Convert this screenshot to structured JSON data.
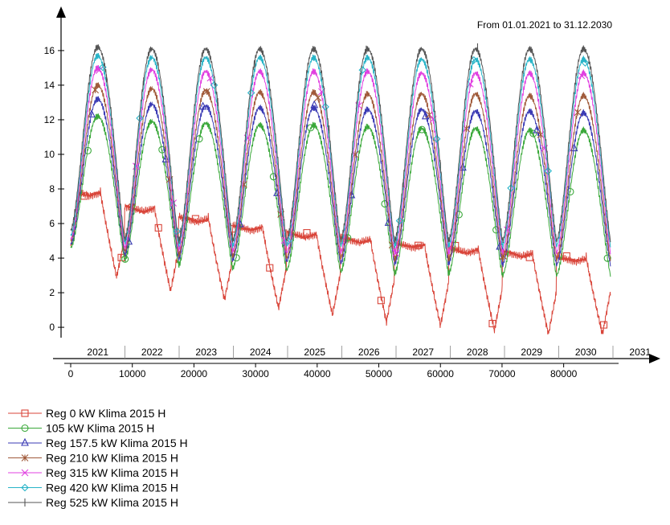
{
  "chart_data": {
    "type": "line",
    "range_label": "From 01.01.2021 to 31.12.2030",
    "xlim": [
      0,
      88000
    ],
    "ylim": [
      -0.6,
      16.6
    ],
    "x_ticks": [
      0,
      10000,
      20000,
      30000,
      40000,
      50000,
      60000,
      70000,
      80000
    ],
    "y_ticks": [
      0,
      2,
      4,
      6,
      8,
      10,
      12,
      14,
      16
    ],
    "year_labels": [
      "2021",
      "2022",
      "2023",
      "2024",
      "2025",
      "2026",
      "2027",
      "2028",
      "2029",
      "2030",
      "2031"
    ],
    "grid": false,
    "legend_position": "bottom-left",
    "series": [
      {
        "name": "Reg 0 kW Klima 2015 H",
        "color": "#d9453a",
        "marker": "square",
        "peaks": [
          7.9,
          7.0,
          6.4,
          5.9,
          5.5,
          5.2,
          4.9,
          4.6,
          4.4,
          4.1
        ],
        "troughs": [
          4.7,
          2.9,
          2.1,
          1.6,
          1.1,
          0.7,
          0.3,
          0.1,
          -0.2,
          -0.4
        ]
      },
      {
        "name": "105 kW Klima 2015 H",
        "color": "#3aa83a",
        "marker": "circle",
        "peaks": [
          12.2,
          11.9,
          11.8,
          11.7,
          11.7,
          11.6,
          11.5,
          11.5,
          11.4,
          11.4
        ],
        "troughs": [
          4.6,
          3.9,
          3.6,
          3.4,
          3.3,
          3.2,
          3.1,
          3.1,
          3.0,
          3.0
        ]
      },
      {
        "name": "Reg 157.5 kW Klima 2015 H",
        "color": "#3a3ab4",
        "marker": "triangle",
        "peaks": [
          13.2,
          12.9,
          12.8,
          12.7,
          12.7,
          12.6,
          12.6,
          12.5,
          12.5,
          12.4
        ],
        "troughs": [
          4.8,
          4.2,
          4.0,
          3.9,
          3.8,
          3.7,
          3.7,
          3.7,
          3.6,
          3.6
        ]
      },
      {
        "name": "Reg 210 kW Klima 2015 H",
        "color": "#a05a3a",
        "marker": "asterisk",
        "peaks": [
          14.0,
          13.8,
          13.7,
          13.6,
          13.6,
          13.5,
          13.5,
          13.5,
          13.4,
          13.4
        ],
        "troughs": [
          5.0,
          4.4,
          4.2,
          4.1,
          4.0,
          4.0,
          3.9,
          3.9,
          3.9,
          3.9
        ]
      },
      {
        "name": "Reg 315 kW Klima 2015 H",
        "color": "#e040e0",
        "marker": "cross",
        "peaks": [
          15.0,
          14.9,
          14.8,
          14.8,
          14.8,
          14.8,
          14.7,
          14.7,
          14.7,
          14.7
        ],
        "troughs": [
          5.1,
          4.6,
          4.5,
          4.4,
          4.3,
          4.3,
          4.3,
          4.3,
          4.3,
          4.3
        ]
      },
      {
        "name": "Reg 420 kW Klima 2015 H",
        "color": "#28b4c8",
        "marker": "diamond",
        "peaks": [
          15.7,
          15.6,
          15.6,
          15.6,
          15.6,
          15.6,
          15.5,
          15.5,
          15.5,
          15.5
        ],
        "troughs": [
          5.3,
          4.9,
          4.8,
          4.7,
          4.7,
          4.7,
          4.7,
          4.7,
          4.7,
          4.7
        ]
      },
      {
        "name": "Reg 525 kW Klima 2015 H",
        "color": "#555555",
        "marker": "bar",
        "peaks": [
          16.2,
          16.1,
          16.1,
          16.1,
          16.1,
          16.1,
          16.1,
          16.1,
          16.1,
          16.1
        ],
        "troughs": [
          5.6,
          5.1,
          5.0,
          5.0,
          5.0,
          5.0,
          5.0,
          5.0,
          5.0,
          5.0
        ]
      }
    ]
  }
}
